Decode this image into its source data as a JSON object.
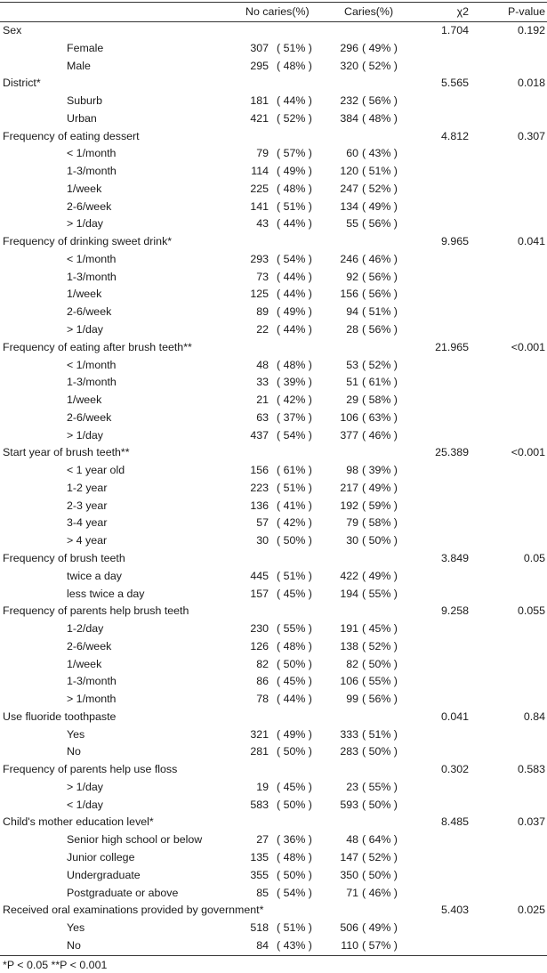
{
  "header": {
    "no_caries": "No caries(%)",
    "caries": "Caries(%)",
    "chi2": "χ2",
    "p_value": "P-value"
  },
  "groups": [
    {
      "label": "Sex",
      "chi2": "1.704",
      "p": "0.192",
      "rows": [
        {
          "label": "Female",
          "n1": "307",
          "p1": "( 51% )",
          "n2": "296",
          "p2": "( 49% )"
        },
        {
          "label": "Male",
          "n1": "295",
          "p1": "( 48% )",
          "n2": "320",
          "p2": "( 52% )"
        }
      ]
    },
    {
      "label": "District*",
      "chi2": "5.565",
      "p": "0.018",
      "rows": [
        {
          "label": "Suburb",
          "n1": "181",
          "p1": "( 44% )",
          "n2": "232",
          "p2": "( 56% )"
        },
        {
          "label": "Urban",
          "n1": "421",
          "p1": "( 52% )",
          "n2": "384",
          "p2": "( 48% )"
        }
      ]
    },
    {
      "label": "Frequency of eating dessert",
      "chi2": "4.812",
      "p": "0.307",
      "rows": [
        {
          "label": "< 1/month",
          "n1": "79",
          "p1": "( 57% )",
          "n2": "60",
          "p2": "( 43% )"
        },
        {
          "label": "1-3/month",
          "n1": "114",
          "p1": "( 49% )",
          "n2": "120",
          "p2": "( 51% )"
        },
        {
          "label": "1/week",
          "n1": "225",
          "p1": "( 48% )",
          "n2": "247",
          "p2": "( 52% )"
        },
        {
          "label": "2-6/week",
          "n1": "141",
          "p1": "( 51% )",
          "n2": "134",
          "p2": "( 49% )"
        },
        {
          "label": "> 1/day",
          "n1": "43",
          "p1": "( 44% )",
          "n2": "55",
          "p2": "( 56% )"
        }
      ]
    },
    {
      "label": "Frequency of drinking sweet drink*",
      "chi2": "9.965",
      "p": "0.041",
      "rows": [
        {
          "label": "< 1/month",
          "n1": "293",
          "p1": "( 54% )",
          "n2": "246",
          "p2": "( 46% )"
        },
        {
          "label": "1-3/month",
          "n1": "73",
          "p1": "( 44% )",
          "n2": "92",
          "p2": "( 56% )"
        },
        {
          "label": "1/week",
          "n1": "125",
          "p1": "( 44% )",
          "n2": "156",
          "p2": "( 56% )"
        },
        {
          "label": "2-6/week",
          "n1": "89",
          "p1": "( 49% )",
          "n2": "94",
          "p2": "( 51% )"
        },
        {
          "label": "> 1/day",
          "n1": "22",
          "p1": "( 44% )",
          "n2": "28",
          "p2": "( 56% )"
        }
      ]
    },
    {
      "label": "Frequency of eating after brush teeth**",
      "chi2": "21.965",
      "p": "<0.001",
      "rows": [
        {
          "label": "< 1/month",
          "n1": "48",
          "p1": "( 48% )",
          "n2": "53",
          "p2": "( 52% )"
        },
        {
          "label": "1-3/month",
          "n1": "33",
          "p1": "( 39% )",
          "n2": "51",
          "p2": "( 61% )"
        },
        {
          "label": "1/week",
          "n1": "21",
          "p1": "( 42% )",
          "n2": "29",
          "p2": "( 58% )"
        },
        {
          "label": "2-6/week",
          "n1": "63",
          "p1": "( 37% )",
          "n2": "106",
          "p2": "( 63% )"
        },
        {
          "label": "> 1/day",
          "n1": "437",
          "p1": "( 54% )",
          "n2": "377",
          "p2": "( 46% )"
        }
      ]
    },
    {
      "label": "Start year of brush teeth**",
      "chi2": "25.389",
      "p": "<0.001",
      "rows": [
        {
          "label": "< 1 year old",
          "n1": "156",
          "p1": "( 61% )",
          "n2": "98",
          "p2": "( 39% )"
        },
        {
          "label": "1-2 year",
          "n1": "223",
          "p1": "( 51% )",
          "n2": "217",
          "p2": "( 49% )"
        },
        {
          "label": "2-3 year",
          "n1": "136",
          "p1": "( 41% )",
          "n2": "192",
          "p2": "( 59% )"
        },
        {
          "label": "3-4 year",
          "n1": "57",
          "p1": "( 42% )",
          "n2": "79",
          "p2": "( 58% )"
        },
        {
          "label": "> 4 year",
          "n1": "30",
          "p1": "( 50% )",
          "n2": "30",
          "p2": "( 50% )"
        }
      ]
    },
    {
      "label": "Frequency of brush teeth",
      "chi2": "3.849",
      "p": "0.05",
      "rows": [
        {
          "label": "twice a day",
          "n1": "445",
          "p1": "( 51% )",
          "n2": "422",
          "p2": "( 49% )"
        },
        {
          "label": "less twice a day",
          "n1": "157",
          "p1": "( 45% )",
          "n2": "194",
          "p2": "( 55% )"
        }
      ]
    },
    {
      "label": "Frequency of parents help brush teeth",
      "chi2": "9.258",
      "p": "0.055",
      "rows": [
        {
          "label": "1-2/day",
          "n1": "230",
          "p1": "( 55% )",
          "n2": "191",
          "p2": "( 45% )"
        },
        {
          "label": "2-6/week",
          "n1": "126",
          "p1": "( 48% )",
          "n2": "138",
          "p2": "( 52% )"
        },
        {
          "label": "1/week",
          "n1": "82",
          "p1": "( 50% )",
          "n2": "82",
          "p2": "( 50% )"
        },
        {
          "label": "1-3/month",
          "n1": "86",
          "p1": "( 45% )",
          "n2": "106",
          "p2": "( 55% )"
        },
        {
          "label": "> 1/month",
          "n1": "78",
          "p1": "( 44% )",
          "n2": "99",
          "p2": "( 56% )"
        }
      ]
    },
    {
      "label": "Use fluoride toothpaste",
      "chi2": "0.041",
      "p": "0.84",
      "rows": [
        {
          "label": "Yes",
          "n1": "321",
          "p1": "( 49% )",
          "n2": "333",
          "p2": "( 51% )"
        },
        {
          "label": "No",
          "n1": "281",
          "p1": "( 50% )",
          "n2": "283",
          "p2": "( 50% )"
        }
      ]
    },
    {
      "label": "Frequency of parents help use floss",
      "chi2": "0.302",
      "p": "0.583",
      "rows": [
        {
          "label": "> 1/day",
          "n1": "19",
          "p1": "( 45% )",
          "n2": "23",
          "p2": "( 55% )"
        },
        {
          "label": "< 1/day",
          "n1": "583",
          "p1": "( 50% )",
          "n2": "593",
          "p2": "( 50% )"
        }
      ]
    },
    {
      "label": "Child's mother education level*",
      "chi2": "8.485",
      "p": "0.037",
      "rows": [
        {
          "label": "Senior high school or below",
          "n1": "27",
          "p1": "( 36% )",
          "n2": "48",
          "p2": "( 64% )"
        },
        {
          "label": "Junior college",
          "n1": "135",
          "p1": "( 48% )",
          "n2": "147",
          "p2": "( 52% )"
        },
        {
          "label": "Undergraduate",
          "n1": "355",
          "p1": "( 50% )",
          "n2": "350",
          "p2": "( 50% )"
        },
        {
          "label": "Postgraduate or above",
          "n1": "85",
          "p1": "( 54% )",
          "n2": "71",
          "p2": "( 46% )"
        }
      ]
    },
    {
      "label": "Received oral examinations provided by government*",
      "chi2": "5.403",
      "p": "0.025",
      "rows": [
        {
          "label": "Yes",
          "n1": "518",
          "p1": "( 51% )",
          "n2": "506",
          "p2": "( 49% )"
        },
        {
          "label": "No",
          "n1": "84",
          "p1": "( 43% )",
          "n2": "110",
          "p2": "( 57% )"
        }
      ]
    }
  ],
  "footnote": "*P < 0.05  **P < 0.001"
}
